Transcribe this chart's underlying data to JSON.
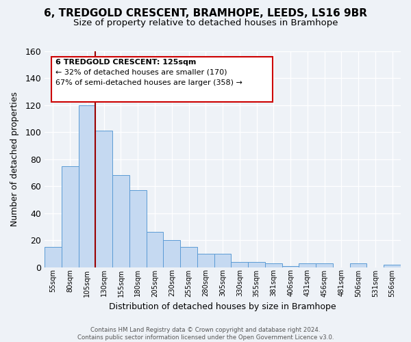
{
  "title": "6, TREDGOLD CRESCENT, BRAMHOPE, LEEDS, LS16 9BR",
  "subtitle": "Size of property relative to detached houses in Bramhope",
  "xlabel": "Distribution of detached houses by size in Bramhope",
  "ylabel": "Number of detached properties",
  "bin_labels": [
    "55sqm",
    "80sqm",
    "105sqm",
    "130sqm",
    "155sqm",
    "180sqm",
    "205sqm",
    "230sqm",
    "255sqm",
    "280sqm",
    "305sqm",
    "330sqm",
    "355sqm",
    "381sqm",
    "406sqm",
    "431sqm",
    "456sqm",
    "481sqm",
    "506sqm",
    "531sqm",
    "556sqm"
  ],
  "bin_values": [
    15,
    75,
    120,
    101,
    68,
    57,
    26,
    20,
    15,
    10,
    10,
    4,
    4,
    3,
    1,
    3,
    3,
    0,
    3,
    0,
    2
  ],
  "bar_color": "#c5d9f1",
  "bar_edge_color": "#5b9bd5",
  "vline_color": "#990000",
  "ylim": [
    0,
    160
  ],
  "yticks": [
    0,
    20,
    40,
    60,
    80,
    100,
    120,
    140,
    160
  ],
  "annotation_title": "6 TREDGOLD CRESCENT: 125sqm",
  "annotation_line1": "← 32% of detached houses are smaller (170)",
  "annotation_line2": "67% of semi-detached houses are larger (358) →",
  "annotation_box_color": "#ffffff",
  "annotation_edge_color": "#cc0000",
  "footer1": "Contains HM Land Registry data © Crown copyright and database right 2024.",
  "footer2": "Contains public sector information licensed under the Open Government Licence v3.0.",
  "bg_color": "#eef2f7",
  "title_fontsize": 11,
  "subtitle_fontsize": 9.5
}
